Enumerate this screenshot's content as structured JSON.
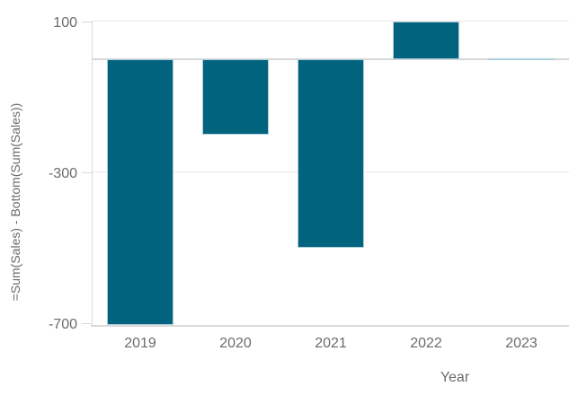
{
  "chart_data": {
    "type": "bar",
    "title": "",
    "categories": [
      "2019",
      "2020",
      "2021",
      "2022",
      "2023"
    ],
    "values": [
      -705,
      -200,
      -500,
      100,
      0
    ],
    "xlabel": "Year",
    "ylabel": "=Sum(Sales) - Bottom(Sum(Sales))",
    "yticks": [
      100,
      -300,
      -700
    ],
    "gridlines": [
      100,
      -300
    ],
    "ylim": [
      -708,
      156
    ],
    "grid": true,
    "legend": "none",
    "colors": {
      "bar_fill": "#02637f",
      "bar_border": "#aecdda",
      "gridline": "#e9e9e9",
      "zero_line": "#d6d6d6",
      "axis_line": "#dadada",
      "tick_text": "#6b6b6b"
    }
  }
}
